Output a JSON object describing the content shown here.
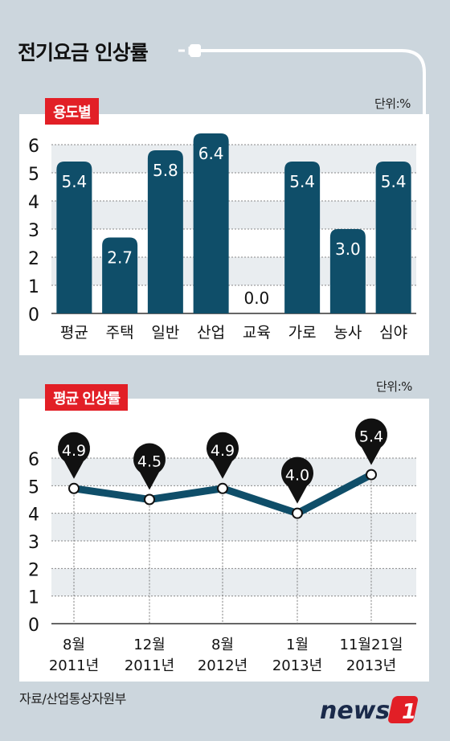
{
  "title": "전기요금 인상률",
  "source": "자료/산업통상자원부",
  "logo": {
    "text": "news",
    "mark": "1"
  },
  "colors": {
    "bar": "#0f4e69",
    "accent": "#e21f26",
    "line": "#0f4e69",
    "marker": "#111111"
  },
  "chart_data": [
    {
      "type": "bar",
      "label": "용도별",
      "unit": "단위:%",
      "categories": [
        "평균",
        "주택",
        "일반",
        "산업",
        "교육",
        "가로",
        "농사",
        "심야"
      ],
      "values": [
        5.4,
        2.7,
        5.8,
        6.4,
        0.0,
        5.4,
        3.0,
        5.4
      ],
      "value_labels": [
        "5.4",
        "2.7",
        "5.8",
        "6.4",
        "0.0",
        "5.4",
        "3.0",
        "5.4"
      ],
      "yticks": [
        "0",
        "1",
        "2",
        "3",
        "4",
        "5",
        "6"
      ],
      "ylim": [
        0,
        6.4
      ],
      "grid": true
    },
    {
      "type": "line",
      "label": "평균 인상률",
      "unit": "단위:%",
      "x_labels": [
        [
          "8월",
          "2011년"
        ],
        [
          "12월",
          "2011년"
        ],
        [
          "8월",
          "2012년"
        ],
        [
          "1월",
          "2013년"
        ],
        [
          "11월21일",
          "2013년"
        ]
      ],
      "values": [
        4.9,
        4.5,
        4.9,
        4.0,
        5.4
      ],
      "value_labels": [
        "4.9",
        "4.5",
        "4.9",
        "4.0",
        "5.4"
      ],
      "yticks": [
        "0",
        "1",
        "2",
        "3",
        "4",
        "5",
        "6"
      ],
      "ylim": [
        0,
        6
      ],
      "grid": true
    }
  ]
}
